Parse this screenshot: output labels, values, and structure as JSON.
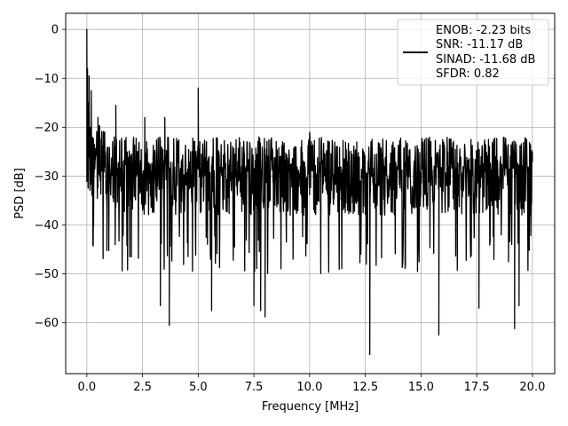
{
  "chart_data": {
    "type": "line",
    "title": "",
    "xlabel": "Frequency [MHz]",
    "ylabel": "PSD [dB]",
    "xlim": [
      -0.95,
      21.0
    ],
    "ylim": [
      -70.4,
      3.3
    ],
    "x_ticks": [
      0.0,
      2.5,
      5.0,
      7.5,
      10.0,
      12.5,
      15.0,
      17.5,
      20.0
    ],
    "x_tick_labels": [
      "0.0",
      "2.5",
      "5.0",
      "7.5",
      "10.0",
      "12.5",
      "15.0",
      "17.5",
      "20.0"
    ],
    "y_ticks": [
      0,
      -10,
      -20,
      -30,
      -40,
      -50,
      -60
    ],
    "y_tick_labels": [
      "0",
      "−10",
      "−20",
      "−30",
      "−40",
      "−50",
      "−60"
    ],
    "grid": true,
    "legend_position": "top-right",
    "series": [
      {
        "name": "ENOB: -2.23 bits\nSNR: -11.17 dB\nSINAD: -11.68 dB\nSFDR: 0.82",
        "legend_lines": [
          "ENOB: -2.23 bits",
          "SNR: -11.17 dB",
          "SINAD: -11.68 dB",
          "SFDR: 0.82"
        ],
        "color": "#000000",
        "x_range": [
          0.0,
          20.0
        ],
        "points": [
          [
            0.0,
            0.0
          ],
          [
            0.03,
            -8.0
          ],
          [
            0.06,
            -15.0
          ],
          [
            0.1,
            -9.5
          ],
          [
            0.15,
            -20.0
          ],
          [
            0.2,
            -12.5
          ],
          [
            0.3,
            -40.2
          ],
          [
            0.5,
            -18.0
          ],
          [
            0.9,
            -45.2
          ],
          [
            1.3,
            -15.5
          ],
          [
            2.0,
            -46.5
          ],
          [
            2.6,
            -18.0
          ],
          [
            3.3,
            -56.5
          ],
          [
            3.5,
            -18.0
          ],
          [
            3.7,
            -60.5
          ],
          [
            5.0,
            -12.0
          ],
          [
            5.6,
            -57.5
          ],
          [
            7.5,
            -56.5
          ],
          [
            7.8,
            -57.5
          ],
          [
            8.0,
            -58.8
          ],
          [
            10.0,
            -21.0
          ],
          [
            12.7,
            -66.5
          ],
          [
            12.8,
            -22.5
          ],
          [
            15.8,
            -62.5
          ],
          [
            17.6,
            -57.0
          ],
          [
            19.2,
            -61.2
          ],
          [
            19.4,
            -56.5
          ],
          [
            20.0,
            -27.0
          ]
        ],
        "noise_band": {
          "typical_high": -22,
          "typical_low": -38
        }
      }
    ]
  }
}
